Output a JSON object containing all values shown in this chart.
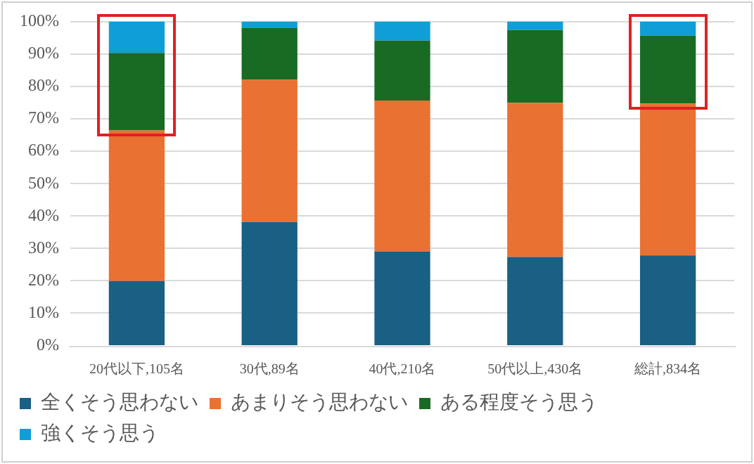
{
  "chart_data": {
    "type": "bar",
    "stacked": true,
    "categories": [
      "20代以下,105名",
      "30代,89名",
      "40代,210名",
      "50代以上,430名",
      "総計,834名"
    ],
    "series": [
      {
        "name": "全くそう思わない",
        "color": "#1a5f84",
        "values": [
          20,
          38.2,
          29.1,
          27.4,
          27.9
        ]
      },
      {
        "name": "あまりそう思わない",
        "color": "#e97132",
        "values": [
          46.4,
          43.8,
          46.5,
          47.5,
          46.8
        ]
      },
      {
        "name": "ある程度そう思う",
        "color": "#196b24",
        "values": [
          23.9,
          15.9,
          18.5,
          22.4,
          20.9
        ]
      },
      {
        "name": "強くそう思う",
        "color": "#0f9ed5",
        "values": [
          9.7,
          2.1,
          5.9,
          2.7,
          4.4
        ]
      }
    ],
    "ylim": [
      0,
      100
    ],
    "yticks": [
      {
        "value": 0,
        "label": "0%"
      },
      {
        "value": 10,
        "label": "10%"
      },
      {
        "value": 20,
        "label": "20%"
      },
      {
        "value": 30,
        "label": "30%"
      },
      {
        "value": 40,
        "label": "40%"
      },
      {
        "value": 50,
        "label": "50%"
      },
      {
        "value": 60,
        "label": "60%"
      },
      {
        "value": 70,
        "label": "70%"
      },
      {
        "value": 80,
        "label": "80%"
      },
      {
        "value": 90,
        "label": "90%"
      },
      {
        "value": 100,
        "label": "100%"
      }
    ],
    "grid": "y",
    "legend": "bottom left"
  }
}
